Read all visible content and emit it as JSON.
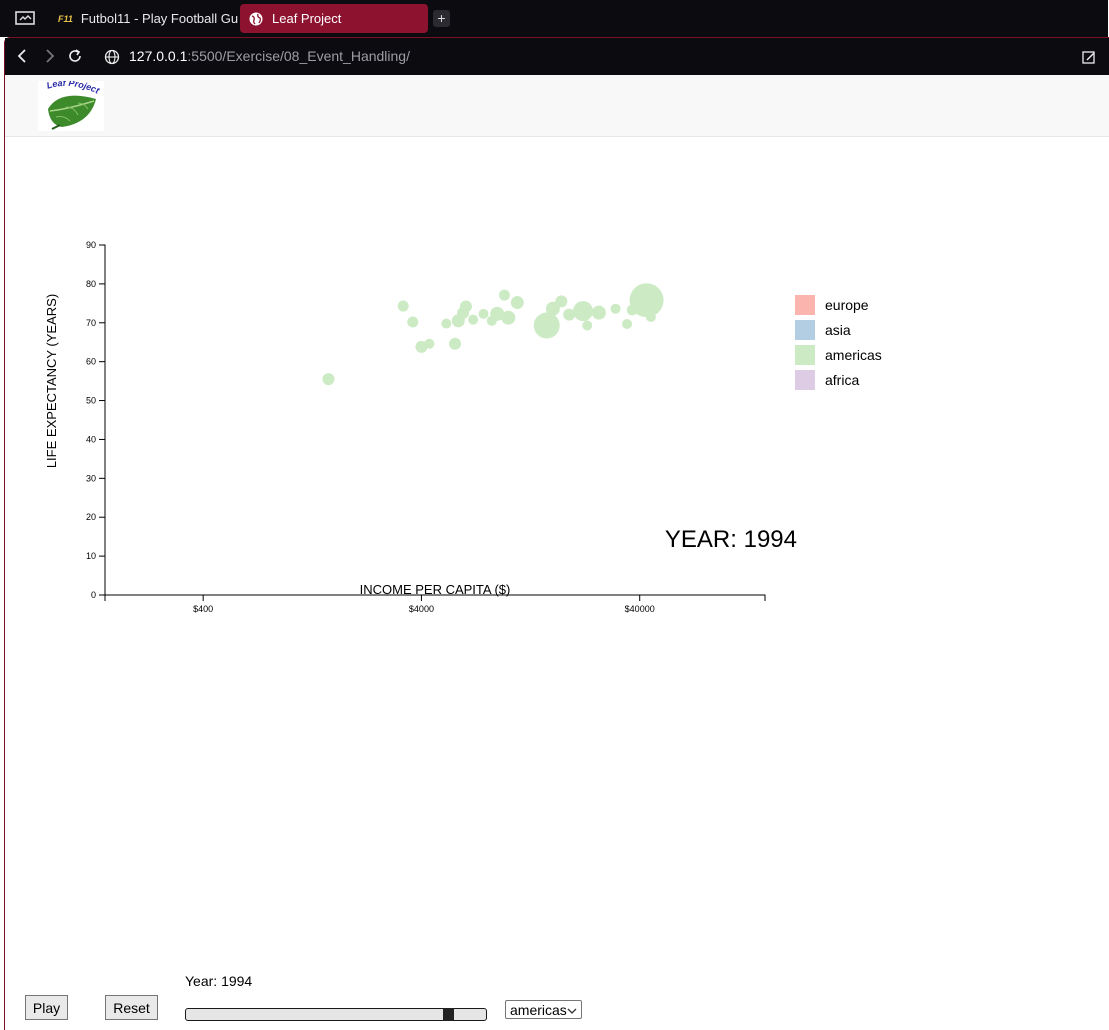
{
  "browser": {
    "tabs": [
      {
        "label": "Futbol11 - Play Football Gu",
        "active": false,
        "icon": "futbol11-favicon"
      },
      {
        "label": "Leaf Project",
        "active": true,
        "icon": "globe-icon"
      }
    ],
    "url_host": "127.0.0.1",
    "url_rest": ":5500/Exercise/08_Event_Handling/"
  },
  "navbar": {
    "logo_text": "Leaf Project"
  },
  "chart_data": {
    "type": "scatter",
    "xlabel": "INCOME PER CAPITA ($)",
    "ylabel": "LIFE EXPECTANCY (YEARS)",
    "x_scale": "log",
    "xlim": [
      142,
      150000
    ],
    "ylim": [
      0,
      90
    ],
    "x_ticks": [
      "$400",
      "$4000",
      "$40000"
    ],
    "y_ticks": [
      0,
      10,
      20,
      30,
      40,
      50,
      60,
      70,
      80,
      90
    ],
    "year_label": "YEAR: 1994",
    "color": "#ccebc5",
    "points": [
      {
        "x": 1500,
        "y": 55.5,
        "r": 6
      },
      {
        "x": 3300,
        "y": 74.3,
        "r": 5.5
      },
      {
        "x": 3650,
        "y": 70.2,
        "r": 5.5
      },
      {
        "x": 4000,
        "y": 63.8,
        "r": 6
      },
      {
        "x": 4350,
        "y": 64.6,
        "r": 5
      },
      {
        "x": 5200,
        "y": 69.8,
        "r": 5
      },
      {
        "x": 5700,
        "y": 64.6,
        "r": 6
      },
      {
        "x": 5900,
        "y": 70.5,
        "r": 6.5
      },
      {
        "x": 6200,
        "y": 72.5,
        "r": 6
      },
      {
        "x": 6400,
        "y": 74.2,
        "r": 6
      },
      {
        "x": 6900,
        "y": 70.8,
        "r": 5
      },
      {
        "x": 7700,
        "y": 72.3,
        "r": 5
      },
      {
        "x": 8400,
        "y": 70.5,
        "r": 5
      },
      {
        "x": 8900,
        "y": 72.3,
        "r": 7
      },
      {
        "x": 9600,
        "y": 77.1,
        "r": 5.5
      },
      {
        "x": 10000,
        "y": 71.3,
        "r": 7
      },
      {
        "x": 11000,
        "y": 75.2,
        "r": 6.5
      },
      {
        "x": 15000,
        "y": 69.3,
        "r": 13
      },
      {
        "x": 16000,
        "y": 73.6,
        "r": 7
      },
      {
        "x": 17500,
        "y": 75.5,
        "r": 6
      },
      {
        "x": 19000,
        "y": 72.1,
        "r": 6
      },
      {
        "x": 22000,
        "y": 73.0,
        "r": 10
      },
      {
        "x": 23000,
        "y": 69.3,
        "r": 5
      },
      {
        "x": 26000,
        "y": 72.6,
        "r": 7
      },
      {
        "x": 31000,
        "y": 73.6,
        "r": 5
      },
      {
        "x": 35000,
        "y": 69.7,
        "r": 5
      },
      {
        "x": 37000,
        "y": 73.3,
        "r": 5.5
      },
      {
        "x": 41000,
        "y": 78.0,
        "r": 7
      },
      {
        "x": 43000,
        "y": 75.8,
        "r": 17
      },
      {
        "x": 45000,
        "y": 71.5,
        "r": 5
      }
    ]
  },
  "legend": [
    {
      "label": "europe",
      "color": "#fbb4ae"
    },
    {
      "label": "asia",
      "color": "#b3cde3"
    },
    {
      "label": "americas",
      "color": "#ccebc5"
    },
    {
      "label": "africa",
      "color": "#decbe4"
    }
  ],
  "controls": {
    "play_label": "Play",
    "reset_label": "Reset",
    "year_label": "Year: 1994",
    "slider_value_fraction": 0.89,
    "continent_selected": "americas"
  }
}
